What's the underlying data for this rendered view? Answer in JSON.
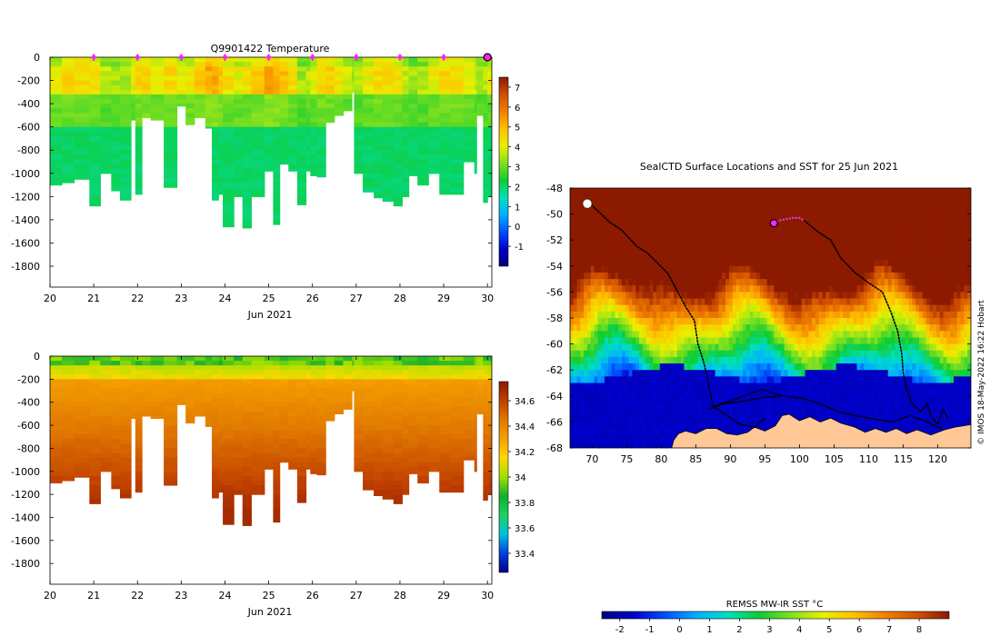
{
  "colors": {
    "land": "#ffc896",
    "track": "#000000",
    "recent_track": "#e040e0",
    "marker": "#ff22ff",
    "temp_scale": [
      "#00007f",
      "#0000cc",
      "#0050ff",
      "#00b0ff",
      "#00e0c0",
      "#10cc30",
      "#80e020",
      "#e8f000",
      "#ffc000",
      "#f08000",
      "#d05000",
      "#8b1a00"
    ],
    "sal_scale": [
      "#00007f",
      "#0040e0",
      "#00c0e0",
      "#20d060",
      "#10b030",
      "#a0e000",
      "#ffd800",
      "#f5a000",
      "#e07800",
      "#c04000",
      "#8b1a00"
    ]
  },
  "chart_data": [
    {
      "type": "heatmap",
      "id": "temperature_section",
      "title": "Q9901422  Temperature",
      "xlabel": "Jun 2021",
      "xticks": [
        "20",
        "21",
        "22",
        "23",
        "24",
        "25",
        "26",
        "27",
        "28",
        "29",
        "30"
      ],
      "xlim": [
        20,
        30.1
      ],
      "yticks": [
        "0",
        "-200",
        "-400",
        "-600",
        "-800",
        "-1000",
        "-1200",
        "-1400",
        "-1600",
        "-1800"
      ],
      "ylim": [
        -1980,
        0
      ],
      "colorbar": {
        "min": -2,
        "max": 7.5,
        "ticks": [
          "7",
          "6",
          "5",
          "4",
          "3",
          "2",
          "1",
          "0",
          "-1"
        ],
        "tick_values": [
          7,
          6,
          5,
          4,
          3,
          2,
          1,
          0,
          -1
        ]
      },
      "surfacing_markers": [
        21,
        22,
        23,
        24,
        25,
        26,
        27,
        28,
        29
      ],
      "current_position_marker": 30,
      "profiles": [
        {
          "day": 20.0,
          "depth": 1100
        },
        {
          "day": 20.27,
          "depth": 1080
        },
        {
          "day": 20.55,
          "depth": 1050
        },
        {
          "day": 20.9,
          "depth": 1280
        },
        {
          "day": 21.15,
          "depth": 1000
        },
        {
          "day": 21.4,
          "depth": 1150
        },
        {
          "day": 21.6,
          "depth": 1230
        },
        {
          "day": 21.85,
          "depth": 540
        },
        {
          "day": 21.95,
          "depth": 1180
        },
        {
          "day": 22.1,
          "depth": 520
        },
        {
          "day": 22.3,
          "depth": 540
        },
        {
          "day": 22.6,
          "depth": 1120
        },
        {
          "day": 22.9,
          "depth": 420
        },
        {
          "day": 23.1,
          "depth": 580
        },
        {
          "day": 23.3,
          "depth": 520
        },
        {
          "day": 23.55,
          "depth": 610
        },
        {
          "day": 23.7,
          "depth": 1230
        },
        {
          "day": 23.85,
          "depth": 1180
        },
        {
          "day": 23.95,
          "depth": 1460
        },
        {
          "day": 24.2,
          "depth": 1200
        },
        {
          "day": 24.4,
          "depth": 1470
        },
        {
          "day": 24.6,
          "depth": 1200
        },
        {
          "day": 24.9,
          "depth": 980
        },
        {
          "day": 25.1,
          "depth": 1440
        },
        {
          "day": 25.25,
          "depth": 920
        },
        {
          "day": 25.45,
          "depth": 980
        },
        {
          "day": 25.65,
          "depth": 1270
        },
        {
          "day": 25.85,
          "depth": 980
        },
        {
          "day": 25.95,
          "depth": 1020
        },
        {
          "day": 26.1,
          "depth": 1030
        },
        {
          "day": 26.3,
          "depth": 560
        },
        {
          "day": 26.5,
          "depth": 500
        },
        {
          "day": 26.7,
          "depth": 460
        },
        {
          "day": 26.9,
          "depth": 300
        },
        {
          "day": 26.95,
          "depth": 1000
        },
        {
          "day": 27.15,
          "depth": 1160
        },
        {
          "day": 27.4,
          "depth": 1210
        },
        {
          "day": 27.6,
          "depth": 1240
        },
        {
          "day": 27.85,
          "depth": 1280
        },
        {
          "day": 28.05,
          "depth": 1200
        },
        {
          "day": 28.2,
          "depth": 1020
        },
        {
          "day": 28.4,
          "depth": 1100
        },
        {
          "day": 28.65,
          "depth": 1000
        },
        {
          "day": 28.9,
          "depth": 1180
        },
        {
          "day": 29.15,
          "depth": 1180
        },
        {
          "day": 29.45,
          "depth": 900
        },
        {
          "day": 29.7,
          "depth": 1000
        },
        {
          "day": 29.75,
          "depth": 500
        },
        {
          "day": 29.9,
          "depth": 1250
        },
        {
          "day": 30.0,
          "depth": 1200
        }
      ]
    },
    {
      "type": "heatmap",
      "id": "salinity_section",
      "title": "",
      "xlabel": "Jun 2021",
      "xticks": [
        "20",
        "21",
        "22",
        "23",
        "24",
        "25",
        "26",
        "27",
        "28",
        "29",
        "30"
      ],
      "xlim": [
        20,
        30.1
      ],
      "yticks": [
        "0",
        "-200",
        "-400",
        "-600",
        "-800",
        "-1000",
        "-1200",
        "-1400",
        "-1600",
        "-1800"
      ],
      "ylim": [
        -1980,
        0
      ],
      "colorbar": {
        "min": 33.25,
        "max": 34.75,
        "ticks": [
          "34.6",
          "34.4",
          "34.2",
          "34",
          "33.8",
          "33.6",
          "33.4"
        ],
        "tick_values": [
          34.6,
          34.4,
          34.2,
          34.0,
          33.8,
          33.6,
          33.4
        ]
      }
    },
    {
      "type": "heatmap",
      "id": "sst_map",
      "title": "SealCTD Surface Locations and SST for 25 Jun 2021",
      "xticks": [
        "70",
        "75",
        "80",
        "85",
        "90",
        "95",
        "100",
        "105",
        "110",
        "115",
        "120"
      ],
      "xlim": [
        66.8,
        124.8
      ],
      "yticks": [
        "-48",
        "-50",
        "-52",
        "-54",
        "-56",
        "-58",
        "-60",
        "-62",
        "-64",
        "-66",
        "-68"
      ],
      "ylim": [
        -68,
        -48
      ],
      "colorbar": {
        "label": "REMSS MW-IR SST °C",
        "min": -2.6,
        "max": 9,
        "ticks": [
          "-2",
          "-1",
          "0",
          "1",
          "2",
          "3",
          "4",
          "5",
          "6",
          "7",
          "8"
        ],
        "tick_values": [
          -2,
          -1,
          0,
          1,
          2,
          3,
          4,
          5,
          6,
          7,
          8
        ]
      },
      "credit": "© IMOS 18-May-2022 16:22 Hobart",
      "current_location": {
        "lon": 96.3,
        "lat": -50.7
      },
      "recent_track": [
        [
          96.3,
          -50.7
        ],
        [
          97.0,
          -50.5
        ],
        [
          98.0,
          -50.4
        ],
        [
          99.0,
          -50.3
        ],
        [
          100.0,
          -50.3
        ],
        [
          100.7,
          -50.5
        ]
      ],
      "tracks": [
        [
          [
            69.2,
            -48.9
          ],
          [
            70.5,
            -49.6
          ],
          [
            72.5,
            -50.6
          ],
          [
            74.2,
            -51.2
          ],
          [
            76.5,
            -52.5
          ],
          [
            78.0,
            -53.0
          ],
          [
            79.5,
            -53.8
          ],
          [
            81.0,
            -54.6
          ],
          [
            82.2,
            -55.8
          ],
          [
            83.6,
            -57.2
          ],
          [
            84.8,
            -58.2
          ],
          [
            85.3,
            -60.0
          ],
          [
            86.2,
            -61.5
          ],
          [
            86.8,
            -63.0
          ],
          [
            87.5,
            -64.8
          ],
          [
            89.5,
            -65.5
          ],
          [
            91.5,
            -66.2
          ],
          [
            93.5,
            -66.4
          ],
          [
            95.0,
            -65.7
          ]
        ],
        [
          [
            100.7,
            -50.5
          ],
          [
            102.5,
            -51.3
          ],
          [
            104.5,
            -52.0
          ],
          [
            106.0,
            -53.4
          ],
          [
            108.0,
            -54.5
          ],
          [
            110.0,
            -55.3
          ],
          [
            112.0,
            -56.0
          ],
          [
            113.2,
            -57.5
          ],
          [
            114.2,
            -59.0
          ],
          [
            114.8,
            -60.8
          ],
          [
            115.0,
            -62.2
          ],
          [
            115.5,
            -63.5
          ],
          [
            116.2,
            -64.5
          ],
          [
            117.5,
            -65.2
          ],
          [
            118.5,
            -64.6
          ],
          [
            119.0,
            -65.5
          ],
          [
            120.0,
            -66.2
          ],
          [
            120.8,
            -65.0
          ],
          [
            121.5,
            -65.8
          ]
        ],
        [
          [
            87.0,
            -65.0
          ],
          [
            89.0,
            -64.6
          ],
          [
            92.0,
            -64.4
          ],
          [
            95.0,
            -64.1
          ],
          [
            98.0,
            -64.0
          ],
          [
            100.5,
            -64.2
          ],
          [
            103.0,
            -64.6
          ],
          [
            105.5,
            -65.2
          ],
          [
            108.0,
            -65.5
          ],
          [
            111.0,
            -65.8
          ],
          [
            113.5,
            -66.0
          ],
          [
            116.0,
            -65.5
          ],
          [
            118.0,
            -65.9
          ],
          [
            120.5,
            -66.5
          ]
        ],
        [
          [
            87.5,
            -64.8
          ],
          [
            91.0,
            -64.2
          ],
          [
            94.5,
            -63.5
          ],
          [
            97.5,
            -64.0
          ]
        ]
      ],
      "coastline": [
        [
          81.5,
          -68
        ],
        [
          81.8,
          -67.4
        ],
        [
          82.5,
          -66.9
        ],
        [
          83.5,
          -66.7
        ],
        [
          85.0,
          -66.9
        ],
        [
          86.5,
          -66.5
        ],
        [
          88.0,
          -66.5
        ],
        [
          89.5,
          -66.9
        ],
        [
          91.0,
          -67.0
        ],
        [
          92.5,
          -66.8
        ],
        [
          93.5,
          -66.4
        ],
        [
          95.0,
          -66.7
        ],
        [
          96.5,
          -66.3
        ],
        [
          97.5,
          -65.5
        ],
        [
          98.5,
          -65.4
        ],
        [
          100.0,
          -65.9
        ],
        [
          101.5,
          -65.6
        ],
        [
          103.0,
          -66.0
        ],
        [
          104.5,
          -65.7
        ],
        [
          106.0,
          -66.1
        ],
        [
          108.0,
          -66.4
        ],
        [
          109.5,
          -66.8
        ],
        [
          111.0,
          -66.5
        ],
        [
          112.5,
          -66.8
        ],
        [
          114.0,
          -66.5
        ],
        [
          115.5,
          -66.9
        ],
        [
          117.0,
          -66.6
        ],
        [
          119.0,
          -67.0
        ],
        [
          121.0,
          -66.6
        ],
        [
          122.5,
          -66.4
        ],
        [
          124.8,
          -66.2
        ],
        [
          124.8,
          -68
        ]
      ]
    }
  ]
}
